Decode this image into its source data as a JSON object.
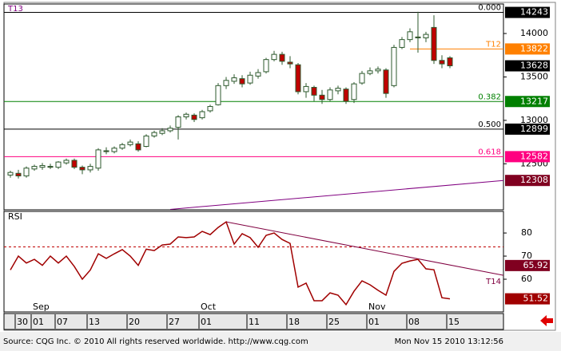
{
  "chart_data": {
    "type": "candlestick",
    "title": "T13",
    "source": "Source: CQG Inc. © 2010 All rights reserved worldwide.  http://www.cqg.com",
    "timestamp": "Mon Nov 15 2010 13:12:56",
    "categories": [
      null,
      "30",
      null,
      "01",
      null,
      null,
      "07",
      null,
      null,
      null,
      "13",
      null,
      null,
      null,
      null,
      "20",
      null,
      null,
      null,
      null,
      "27",
      null,
      null,
      null,
      "01",
      null,
      null,
      null,
      null,
      null,
      "11",
      null,
      null,
      null,
      null,
      "18",
      null,
      null,
      null,
      null,
      "25",
      null,
      null,
      null,
      null,
      "01",
      null,
      null,
      null,
      null,
      "08",
      null,
      null,
      null,
      null,
      "15"
    ],
    "months": [
      null,
      null,
      null,
      "Sep",
      null,
      null,
      null,
      null,
      null,
      null,
      null,
      null,
      null,
      null,
      null,
      null,
      null,
      null,
      null,
      null,
      null,
      null,
      null,
      null,
      "Oct",
      null,
      null,
      null,
      null,
      null,
      null,
      null,
      null,
      null,
      null,
      null,
      null,
      null,
      null,
      null,
      null,
      null,
      null,
      null,
      null,
      "Nov",
      null,
      null,
      null,
      null,
      null,
      null,
      null,
      null,
      null,
      null
    ],
    "open": [
      12370,
      12390,
      12360,
      12440,
      12460,
      12470,
      12460,
      12510,
      12540,
      12460,
      12430,
      12450,
      12650,
      12640,
      12680,
      12720,
      12730,
      12700,
      12820,
      12850,
      12880,
      12920,
      13040,
      13060,
      13030,
      13110,
      13180,
      13400,
      13450,
      13480,
      13430,
      13510,
      13560,
      13700,
      13760,
      13670,
      13640,
      13330,
      13380,
      13290,
      13240,
      13340,
      13360,
      13240,
      13430,
      13540,
      13570,
      13580,
      13400,
      13840,
      13930,
      13960,
      13950,
      14070,
      13690,
      13720
    ],
    "high": [
      12420,
      12430,
      12470,
      12490,
      12510,
      12500,
      12530,
      12560,
      12560,
      12480,
      12500,
      12680,
      12690,
      12700,
      12740,
      12780,
      12760,
      12840,
      12880,
      12910,
      12940,
      13060,
      13090,
      13080,
      13120,
      13180,
      13430,
      13500,
      13530,
      13520,
      13560,
      13590,
      13720,
      13800,
      13790,
      13740,
      13660,
      13430,
      13400,
      13350,
      13380,
      13400,
      13380,
      13440,
      13570,
      13610,
      13620,
      13600,
      13870,
      13960,
      14060,
      14250,
      14020,
      14210,
      13750,
      13740
    ],
    "low": [
      12340,
      12330,
      12340,
      12420,
      12430,
      12440,
      12440,
      12490,
      12440,
      12380,
      12400,
      12420,
      12610,
      12620,
      12660,
      12700,
      12640,
      12690,
      12800,
      12830,
      12860,
      12780,
      13010,
      12980,
      13010,
      13090,
      13170,
      13360,
      13420,
      13380,
      13410,
      13480,
      13540,
      13680,
      13640,
      13600,
      13300,
      13260,
      13220,
      13190,
      13220,
      13300,
      13190,
      13200,
      13410,
      13520,
      13540,
      13260,
      13380,
      13820,
      13900,
      13780,
      13900,
      13650,
      13600,
      13600
    ],
    "close": [
      12400,
      12360,
      12450,
      12470,
      12480,
      12460,
      12520,
      12540,
      12460,
      12430,
      12470,
      12660,
      12640,
      12680,
      12720,
      12750,
      12660,
      12820,
      12860,
      12880,
      12910,
      13040,
      13070,
      13010,
      13100,
      13160,
      13400,
      13460,
      13490,
      13420,
      13520,
      13550,
      13700,
      13760,
      13680,
      13650,
      13330,
      13390,
      13290,
      13240,
      13350,
      13370,
      13220,
      13420,
      13540,
      13570,
      13590,
      13310,
      13840,
      13930,
      14020,
      13950,
      13990,
      13690,
      13650,
      13628
    ],
    "up_color": "#ffffff",
    "down_color": "#c00000",
    "outline_color": "#2e5a2e",
    "ylim": [
      11970,
      14340
    ],
    "yticks": [
      12500,
      13000,
      13500,
      14000
    ],
    "levels": [
      {
        "value": 14243,
        "ratio": "0.000",
        "color": "#000000"
      },
      {
        "value": 13822,
        "ratio": "T12",
        "color": "#ff8000"
      },
      {
        "value": 13217,
        "ratio": "0.382",
        "color": "#008000"
      },
      {
        "value": 12899,
        "ratio": "0.500",
        "color": "#000000"
      },
      {
        "value": 12582,
        "ratio": "0.618",
        "color": "#ff0080"
      }
    ],
    "last_price": {
      "value": 13628,
      "color": "#000000"
    },
    "trendline": {
      "x": [
        20,
        61.7
      ],
      "values": [
        11975,
        12308
      ],
      "color": "#800080",
      "label_color": "#800020"
    },
    "rsi": {
      "title": "RSI",
      "color": "#a00000",
      "values": [
        64,
        70,
        67,
        68.6,
        66,
        70,
        67,
        70,
        65.5,
        60,
        64,
        71,
        69,
        71,
        72.8,
        70,
        66,
        73,
        72.4,
        74.8,
        75.2,
        78.3,
        78,
        78.3,
        80.7,
        79.3,
        82.4,
        84.8,
        75.2,
        79.7,
        78,
        73.8,
        79,
        80,
        77.2,
        75.5,
        56.6,
        58.3,
        50.7,
        50.7,
        54.1,
        53.1,
        49,
        54.8,
        59.3,
        57.6,
        55.2,
        53.1,
        63.4,
        66.9,
        67.9,
        68.6,
        64.5,
        64.1,
        52,
        51.52
      ],
      "ylim": [
        46.2,
        89
      ],
      "yticks": [
        60,
        70,
        80
      ],
      "level": 74,
      "trendline": {
        "x": [
          27,
          61.7
        ],
        "values": [
          84.8,
          61.7
        ],
        "label": "T14",
        "color": "#800040"
      },
      "marker": {
        "value": 65.92,
        "color": "#800020"
      },
      "last_color": "#a00000"
    }
  }
}
